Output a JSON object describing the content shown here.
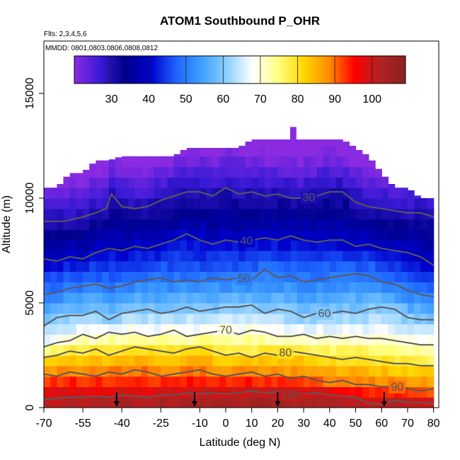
{
  "chart_data": {
    "type": "heatmap",
    "title": "ATOM1 Southbound P_OHR",
    "note_flights": "Flts: 2,3,4,5,6",
    "note_dates": "MMDD: 0801,0803,0806,0808,0812",
    "xlabel": "Latitude (deg N)",
    "ylabel": "Altitude (m)",
    "xlim": [
      -70,
      82
    ],
    "ylim": [
      0,
      17500
    ],
    "x_ticks": [
      -70,
      -55,
      -40,
      -25,
      -10,
      0,
      10,
      20,
      30,
      40,
      50,
      60,
      70,
      80
    ],
    "x_tick_labels": [
      "-70",
      "-55",
      "-40",
      "-25",
      "-10",
      "0",
      "10",
      "20",
      "30",
      "40",
      "50",
      "60",
      "70",
      "80"
    ],
    "y_ticks": [
      0,
      5000,
      10000,
      15000
    ],
    "y_tick_labels": [
      "0",
      "5000",
      "10000",
      "15000"
    ],
    "colorbar": {
      "range": [
        20,
        109
      ],
      "ticks": [
        30,
        40,
        50,
        60,
        70,
        80,
        90,
        100
      ],
      "tick_labels": [
        "30",
        "40",
        "50",
        "60",
        "70",
        "80",
        "90",
        "100"
      ],
      "colors": [
        "#8a2be2",
        "#3a1ad6",
        "#00008b",
        "#0000cd",
        "#1e64ff",
        "#3fa0ff",
        "#8fd0ff",
        "#ffffff",
        "#ffff80",
        "#ffd700",
        "#ff8c00",
        "#ff0000",
        "#b22222",
        "#8b2020"
      ]
    },
    "altitude_profile": {
      "latitudes": [
        -70,
        -65,
        -60,
        -55,
        -50,
        -45,
        -40,
        -35,
        -30,
        -25,
        -20,
        -15,
        -10,
        -5,
        0,
        5,
        10,
        15,
        20,
        25,
        30,
        35,
        40,
        45,
        50,
        55,
        60,
        65,
        70,
        75,
        80
      ],
      "max_altitude_m": [
        10500,
        10500,
        11200,
        11200,
        11800,
        11800,
        12000,
        12000,
        12000,
        12000,
        12000,
        12400,
        12400,
        12400,
        12400,
        12400,
        12800,
        12800,
        12800,
        12800,
        12800,
        12800,
        12800,
        12800,
        12400,
        12000,
        11200,
        10500,
        10500,
        10000,
        10000
      ],
      "min_altitude_m": [
        0,
        0,
        0,
        0,
        0,
        0,
        0,
        0,
        0,
        0,
        0,
        0,
        0,
        0,
        0,
        0,
        0,
        0,
        0,
        0,
        0,
        0,
        0,
        0,
        0,
        0,
        0,
        0,
        0,
        0,
        0
      ]
    },
    "top_peak": {
      "lat": 26,
      "altitude_m": 13400
    },
    "contours": [
      {
        "level": 30,
        "label": "30",
        "label_lat": 32,
        "lat": [
          -70,
          -62,
          -55,
          -50,
          -46,
          -44,
          -40,
          -35,
          -30,
          -25,
          -20,
          -15,
          -10,
          -5,
          0,
          5,
          10,
          15,
          20,
          25,
          30,
          35,
          40,
          45,
          50,
          55,
          60,
          65,
          70,
          75,
          80
        ],
        "alt": [
          8900,
          8900,
          9100,
          9300,
          9500,
          10200,
          9600,
          9500,
          9600,
          9900,
          10100,
          10300,
          10300,
          10100,
          10500,
          10200,
          10300,
          10100,
          10200,
          10000,
          10000,
          10100,
          10300,
          10300,
          9800,
          9600,
          9500,
          9400,
          9300,
          9300,
          9100
        ]
      },
      {
        "level": 40,
        "label": "40",
        "label_lat": 8,
        "lat": [
          -70,
          -65,
          -60,
          -55,
          -50,
          -45,
          -40,
          -35,
          -30,
          -25,
          -20,
          -15,
          -10,
          -5,
          0,
          5,
          10,
          15,
          20,
          25,
          30,
          35,
          40,
          45,
          50,
          55,
          60,
          65,
          70,
          75,
          80
        ],
        "alt": [
          7100,
          7000,
          7200,
          7100,
          7400,
          7600,
          7500,
          7700,
          7600,
          7800,
          8000,
          8300,
          8000,
          7800,
          8000,
          7900,
          8000,
          8100,
          8000,
          8200,
          8000,
          7900,
          8000,
          8000,
          7700,
          7800,
          7600,
          7500,
          7400,
          7200,
          6800
        ]
      },
      {
        "level": 50,
        "label": "50",
        "label_lat": 7,
        "lat": [
          -70,
          -65,
          -60,
          -55,
          -50,
          -45,
          -40,
          -35,
          -30,
          -25,
          -20,
          -15,
          -10,
          -5,
          0,
          5,
          10,
          15,
          20,
          25,
          30,
          35,
          40,
          45,
          50,
          55,
          60,
          65,
          70,
          75,
          80
        ],
        "alt": [
          5400,
          5500,
          5700,
          5800,
          5900,
          5700,
          5800,
          6000,
          6100,
          6200,
          6000,
          6100,
          6000,
          6200,
          6100,
          6200,
          6100,
          6600,
          6200,
          6300,
          6000,
          6100,
          6200,
          6300,
          6400,
          6300,
          6000,
          5900,
          5600,
          5400,
          5300
        ]
      },
      {
        "level": 60,
        "label": "60",
        "label_lat": 38,
        "lat": [
          -70,
          -65,
          -60,
          -55,
          -50,
          -45,
          -40,
          -35,
          -30,
          -25,
          -20,
          -15,
          -10,
          -5,
          0,
          5,
          10,
          15,
          20,
          25,
          30,
          35,
          40,
          45,
          50,
          55,
          60,
          65,
          70,
          75,
          80
        ],
        "alt": [
          3900,
          4300,
          4400,
          4400,
          4600,
          4200,
          4500,
          4600,
          4700,
          4500,
          4600,
          4800,
          4600,
          4700,
          4800,
          4800,
          4900,
          4500,
          4700,
          4600,
          4300,
          4500,
          4500,
          4600,
          4500,
          4700,
          4800,
          4700,
          4300,
          4200,
          4200
        ]
      },
      {
        "level": 70,
        "label": "70",
        "label_lat": 0,
        "lat": [
          -70,
          -65,
          -60,
          -55,
          -50,
          -45,
          -40,
          -35,
          -30,
          -25,
          -20,
          -15,
          -10,
          -5,
          0,
          5,
          10,
          15,
          20,
          25,
          30,
          35,
          40,
          45,
          50,
          55,
          60,
          65,
          70,
          75,
          80
        ],
        "alt": [
          2900,
          3100,
          3200,
          3500,
          3300,
          3600,
          3500,
          3600,
          3400,
          3500,
          3700,
          3400,
          3500,
          3600,
          3700,
          3500,
          3700,
          3600,
          3400,
          3400,
          3500,
          3300,
          3400,
          3300,
          3400,
          3300,
          3300,
          3200,
          3100,
          3000,
          3000
        ]
      },
      {
        "level": 80,
        "label": "80",
        "label_lat": 23,
        "lat": [
          -70,
          -65,
          -60,
          -55,
          -50,
          -45,
          -40,
          -35,
          -30,
          -25,
          -20,
          -15,
          -10,
          -5,
          0,
          5,
          10,
          15,
          20,
          25,
          30,
          35,
          40,
          45,
          50,
          55,
          60,
          65,
          70,
          75,
          80
        ],
        "alt": [
          2400,
          2500,
          2700,
          2600,
          2800,
          2500,
          2700,
          2900,
          2800,
          2700,
          2600,
          2800,
          2900,
          2700,
          2500,
          2600,
          2400,
          2600,
          2500,
          2700,
          2600,
          2500,
          2400,
          2300,
          2400,
          2300,
          2200,
          2100,
          2100,
          2000,
          2000
        ]
      },
      {
        "level": 90,
        "label": "90",
        "label_lat": 66,
        "lat": [
          -70,
          -65,
          -60,
          -55,
          -50,
          -45,
          -40,
          -35,
          -30,
          -25,
          -20,
          -15,
          -10,
          -5,
          0,
          5,
          10,
          15,
          20,
          25,
          30,
          35,
          40,
          45,
          50,
          55,
          60,
          65,
          70,
          75,
          80
        ],
        "alt": [
          1600,
          1500,
          1700,
          1600,
          1500,
          1700,
          1600,
          1800,
          1700,
          1500,
          1600,
          1700,
          1800,
          1600,
          1500,
          1600,
          1700,
          1500,
          1600,
          1400,
          1500,
          1300,
          1200,
          1300,
          1100,
          1100,
          1000,
          1000,
          900,
          800,
          900
        ]
      },
      {
        "level": 100,
        "label": "100",
        "label_lat": 25,
        "lat": [
          -70,
          -65,
          -60,
          -55,
          -50,
          -45,
          -40,
          -35,
          -30,
          -25,
          -20,
          -15,
          -10,
          -5,
          0,
          5,
          10,
          15,
          20,
          25,
          30,
          35,
          40,
          45,
          50,
          55,
          60,
          65,
          70,
          75,
          80
        ],
        "alt": [
          400,
          450,
          500,
          500,
          550,
          500,
          600,
          550,
          500,
          600,
          600,
          700,
          650,
          700,
          650,
          700,
          800,
          700,
          750,
          600,
          650,
          700,
          600,
          550,
          500,
          200,
          150,
          350,
          250,
          250,
          200
        ]
      }
    ],
    "arrows_lat": [
      -42,
      -12,
      20,
      61
    ]
  }
}
